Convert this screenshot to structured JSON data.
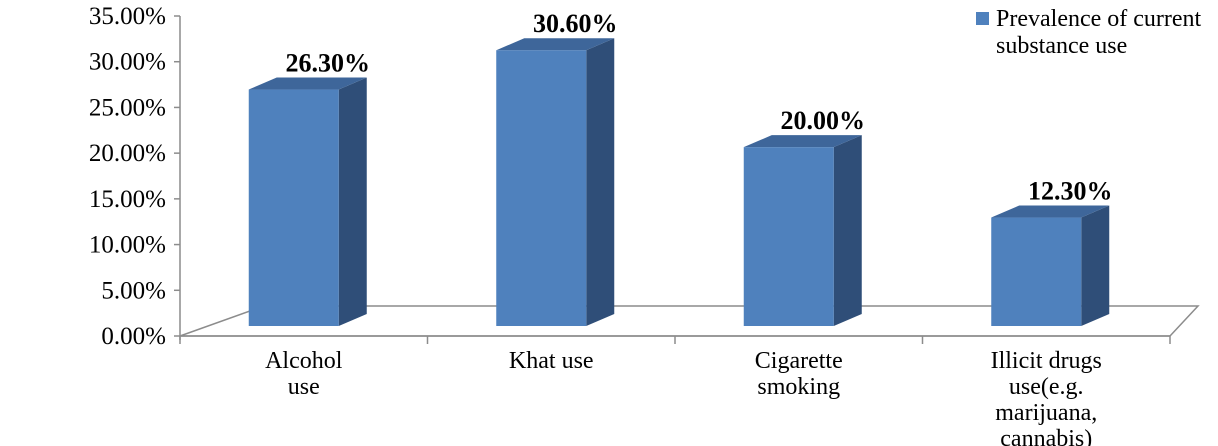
{
  "chart_data": {
    "type": "bar",
    "title": "",
    "xlabel": "",
    "ylabel": "",
    "categories": [
      [
        "Alcohol",
        "use"
      ],
      [
        "Khat use"
      ],
      [
        "Cigarette",
        "smoking"
      ],
      [
        "Illicit drugs",
        "use(e.g.",
        "marijuana,",
        "cannabis)"
      ]
    ],
    "series": [
      {
        "name": "Prevalence of current substance use",
        "values": [
          26.3,
          30.6,
          20.0,
          12.3
        ],
        "data_labels": [
          "26.30%",
          "30.60%",
          "20.00%",
          "12.30%"
        ],
        "color": "#4F81BD",
        "side_color": "#2F4E78",
        "top_color": "#3E669A"
      }
    ],
    "ylim": [
      0,
      35
    ],
    "y_ticks": [
      "0.00%",
      "5.00%",
      "10.00%",
      "15.00%",
      "20.00%",
      "25.00%",
      "30.00%",
      "35.00%"
    ],
    "legend": {
      "position": "top-right",
      "lines": [
        "Prevalence of current",
        "substance use"
      ]
    },
    "grid": false,
    "style": "3d-column"
  }
}
